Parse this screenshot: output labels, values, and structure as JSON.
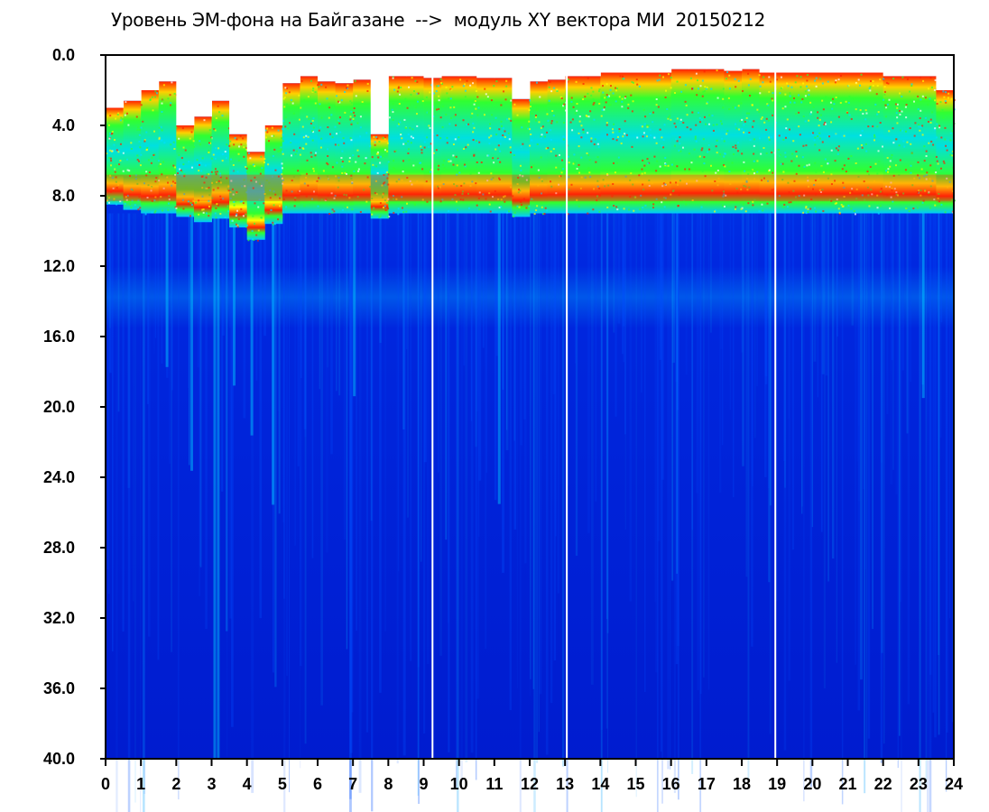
{
  "chart_data": {
    "type": "heatmap",
    "title": "Уровень ЭМ-фона на Байгазане  -->  модуль XY вектора МИ  20150212",
    "xlabel": "",
    "ylabel": "",
    "x_ticks": [
      "0",
      "1",
      "2",
      "3",
      "4",
      "5",
      "6",
      "7",
      "8",
      "9",
      "10",
      "11",
      "12",
      "13",
      "14",
      "15",
      "16",
      "17",
      "18",
      "19",
      "20",
      "21",
      "22",
      "23",
      "24"
    ],
    "y_ticks": [
      "0.0",
      "4.0",
      "8.0",
      "12.0",
      "16.0",
      "20.0",
      "24.0",
      "28.0",
      "32.0",
      "36.0",
      "40.0"
    ],
    "xlim": [
      0,
      24
    ],
    "ylim": [
      0,
      40
    ],
    "y_inverted": true,
    "colormap": [
      "#0018d8",
      "#0060ff",
      "#00e0ff",
      "#30ff30",
      "#ffff00",
      "#ff2000",
      "#ffffff"
    ],
    "band_top": [
      3.0,
      2.6,
      2.0,
      1.5,
      4.0,
      3.5,
      2.6,
      4.5,
      5.5,
      4.0,
      1.6,
      1.2,
      1.5,
      1.6,
      1.4,
      4.5,
      1.2,
      1.2,
      1.3,
      1.2,
      1.2,
      1.3,
      1.3,
      2.5,
      1.5,
      1.4,
      1.2,
      1.2,
      1.0,
      1.0,
      1.0,
      1.0,
      0.8,
      0.8,
      0.8,
      0.9,
      0.8,
      1.0,
      1.0,
      1.0,
      1.0,
      1.0,
      1.0,
      1.0,
      1.2,
      1.2,
      1.2,
      2.0
    ],
    "band_bottom": [
      8.5,
      8.8,
      9.0,
      9.0,
      9.2,
      9.5,
      9.3,
      9.8,
      10.5,
      9.6,
      9.0,
      9.0,
      9.0,
      9.0,
      9.0,
      9.3,
      9.0,
      9.0,
      9.0,
      9.0,
      9.0,
      9.0,
      9.0,
      9.2,
      9.0,
      9.0,
      9.0,
      9.0,
      9.0,
      9.0,
      9.0,
      9.0,
      9.0,
      9.0,
      9.0,
      9.0,
      9.0,
      9.0,
      9.0,
      9.0,
      9.0,
      9.0,
      9.0,
      9.0,
      9.0,
      9.0,
      9.0,
      9.0
    ],
    "gaps_hours": [
      9.25,
      13.05,
      18.95
    ]
  }
}
